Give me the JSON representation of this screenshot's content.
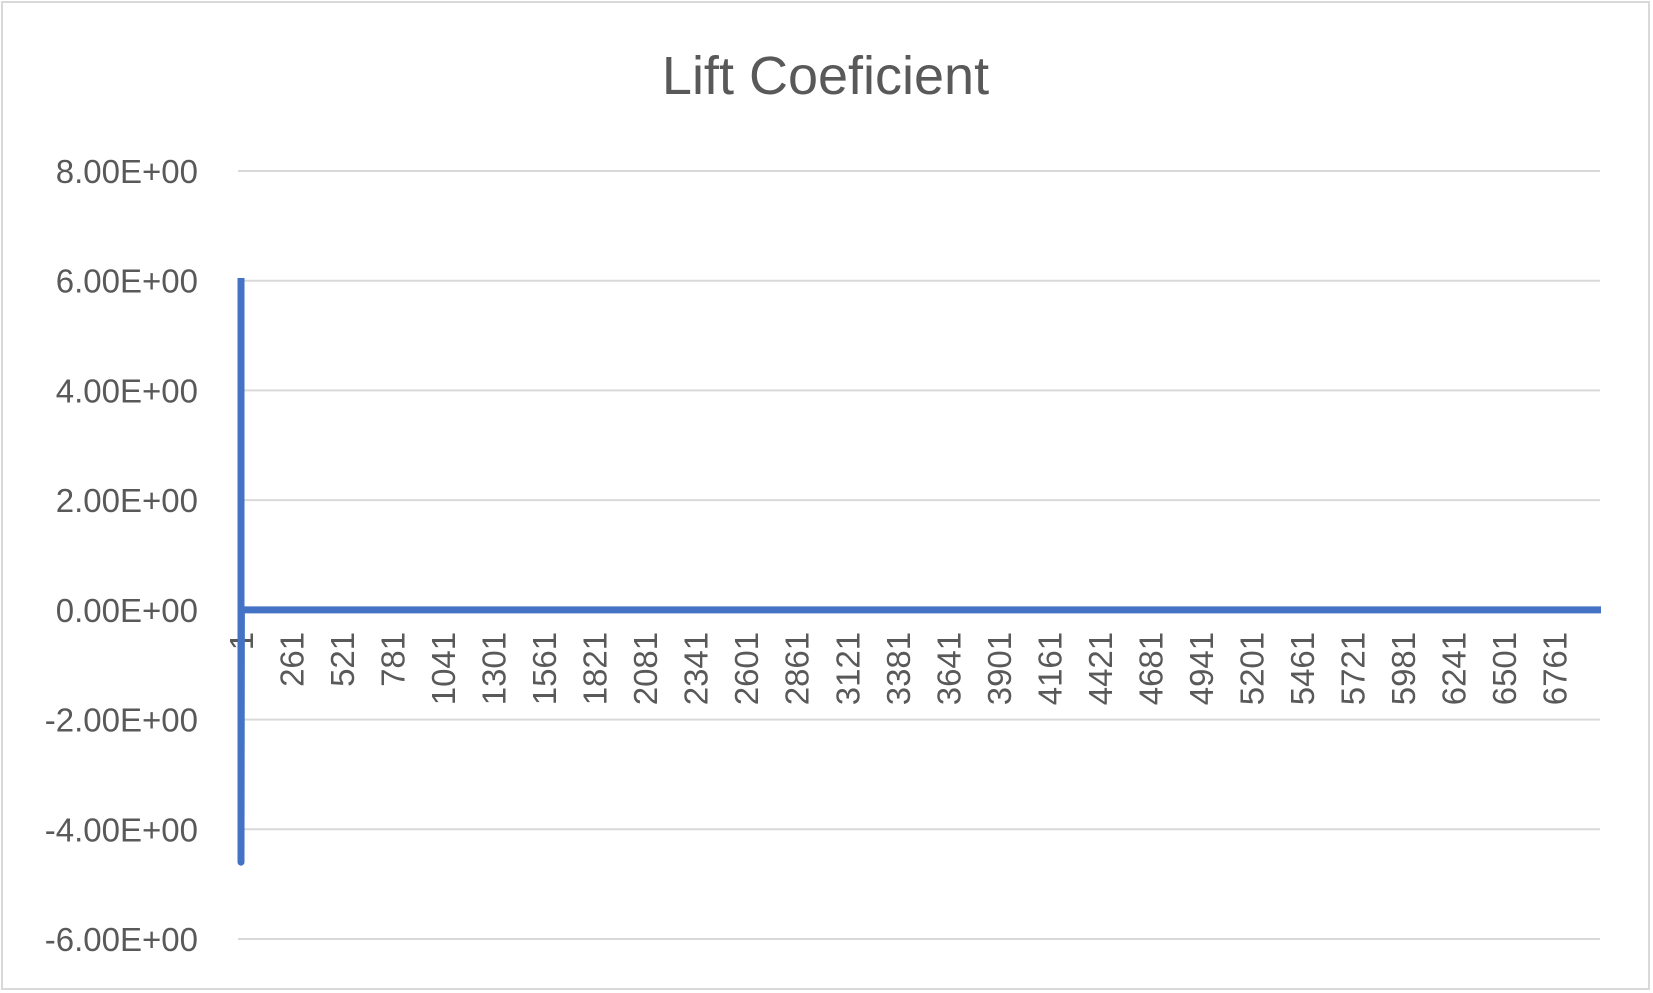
{
  "chart_data": {
    "type": "line",
    "title": "Lift Coeficient",
    "xlabel": "",
    "ylabel": "",
    "ylim": [
      -6,
      8
    ],
    "y_ticks": [
      8,
      6,
      4,
      2,
      0,
      -2,
      -4,
      -6
    ],
    "y_tick_labels": [
      "8.00E+00",
      "6.00E+00",
      "4.00E+00",
      "2.00E+00",
      "0.00E+00",
      "-2.00E+00",
      "-4.00E+00",
      "-6.00E+00"
    ],
    "x_categories_range": [
      1,
      7000
    ],
    "x_tick_labels": [
      "1",
      "261",
      "521",
      "781",
      "1041",
      "1301",
      "1561",
      "1821",
      "2081",
      "2341",
      "2601",
      "2861",
      "3121",
      "3381",
      "3641",
      "3901",
      "4161",
      "4421",
      "4681",
      "4941",
      "5201",
      "5461",
      "5721",
      "5981",
      "6241",
      "6501",
      "6761"
    ],
    "grid": true,
    "legend": "none",
    "series": [
      {
        "color": "#4472c4",
        "points": [
          {
            "x": 1,
            "y": 6.05
          },
          {
            "x": 2,
            "y": -4.6
          },
          {
            "x": 3,
            "y": 0.0
          },
          {
            "x": 50,
            "y": 0.0
          },
          {
            "x": 7000,
            "y": 0.0
          }
        ]
      }
    ]
  }
}
